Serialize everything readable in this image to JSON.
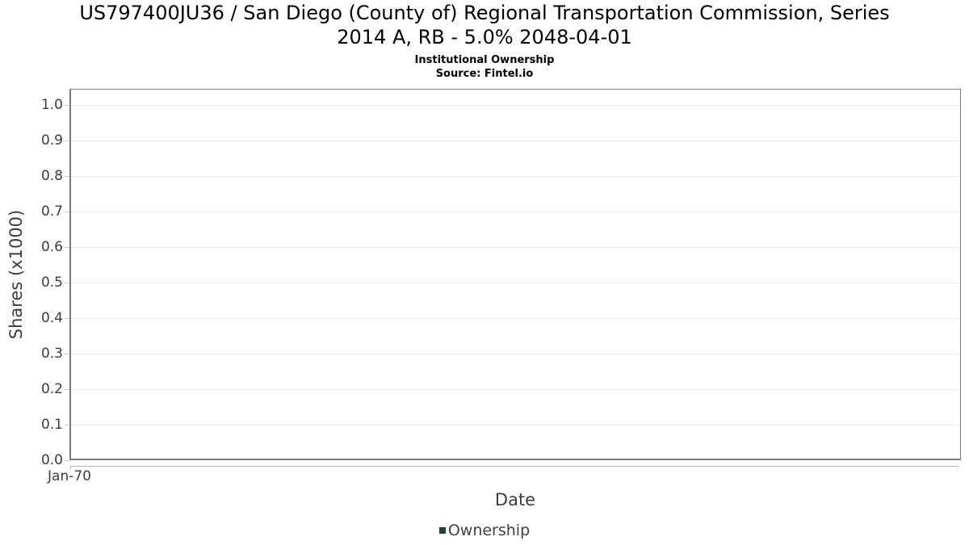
{
  "chart_data": {
    "type": "line",
    "title": "US797400JU36 / San Diego (County of) Regional Transportation Commission, Series 2014 A, RB - 5.0% 2048-04-01",
    "title_lines": [
      "US797400JU36 / San Diego (County of) Regional Transportation Commission, Series",
      "2014 A, RB - 5.0% 2048-04-01"
    ],
    "subtitle": "Institutional Ownership",
    "source": "Source: Fintel.io",
    "xlabel": "Date",
    "ylabel": "Shares (x1000)",
    "x_ticks": [
      "Jan-70"
    ],
    "y_ticks": [
      "0.0",
      "0.1",
      "0.2",
      "0.3",
      "0.4",
      "0.5",
      "0.6",
      "0.7",
      "0.8",
      "0.9",
      "1.0"
    ],
    "ylim": [
      0.0,
      1.045
    ],
    "grid": true,
    "legend": {
      "position": "bottom",
      "entries": [
        {
          "label": "Ownership",
          "color": "#1c4726"
        }
      ]
    },
    "series": [
      {
        "name": "Ownership",
        "color": "#1c4726",
        "x": [],
        "values": []
      }
    ]
  },
  "colors": {
    "plot_border": "#7b7b7b",
    "gridline": "#e7e7e7",
    "axis_line": "#b9b9b9",
    "tick_mark": "#c9c9c9",
    "axis_text": "#3d3d3d",
    "title_text": "#000000",
    "legend_text": "#414141"
  }
}
